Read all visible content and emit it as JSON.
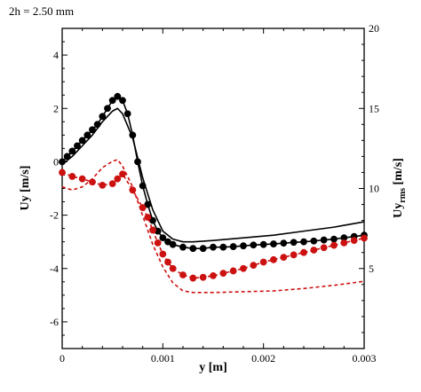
{
  "chart_data": {
    "type": "line",
    "annotation": "2h = 2.50 mm",
    "xlabel": "y [m]",
    "ylabel_left": "Uy [m/s]",
    "ylabel_right_base": "Uy",
    "ylabel_right_sub": "rms",
    "ylabel_right_unit": "[m/s]",
    "xlim": [
      0,
      0.003
    ],
    "ylim_left": [
      -7,
      5
    ],
    "ylim_right": [
      0,
      20
    ],
    "xticks": [
      0,
      0.001,
      0.002,
      0.003
    ],
    "xtick_labels": [
      "0",
      "0.001",
      "0.002",
      "0.003"
    ],
    "yticks_left": [
      -6,
      -4,
      -2,
      0,
      2,
      4
    ],
    "yticks_left_labels": [
      "-6",
      "-4",
      "-2",
      "0",
      "2",
      "4"
    ],
    "yticks_right": [
      5,
      10,
      15,
      20
    ],
    "yticks_right_labels": [
      "5",
      "10",
      "15",
      "20"
    ],
    "grid": false,
    "legend": "none",
    "colors": {
      "black": "#000000",
      "red": "#cc1111"
    },
    "series": [
      {
        "axis": "left",
        "style": "solid",
        "markers": false,
        "color": "#000000",
        "x": [
          0,
          0.0001,
          0.0002,
          0.0003,
          0.0004,
          0.0005,
          0.00055,
          0.0006,
          0.0007,
          0.0008,
          0.0009,
          0.001,
          0.0011,
          0.0012,
          0.0013,
          0.0015,
          0.0018,
          0.0021,
          0.0024,
          0.0027,
          0.003
        ],
        "y": [
          -0.1,
          0.2,
          0.6,
          1.0,
          1.5,
          1.9,
          2.0,
          1.8,
          0.9,
          -0.6,
          -1.8,
          -2.6,
          -2.9,
          -3.0,
          -3.0,
          -2.95,
          -2.85,
          -2.75,
          -2.6,
          -2.45,
          -2.25
        ]
      },
      {
        "axis": "left",
        "style": "solid",
        "markers": true,
        "color": "#000000",
        "x": [
          0,
          5e-05,
          0.0001,
          0.00015,
          0.0002,
          0.00025,
          0.0003,
          0.00035,
          0.0004,
          0.00045,
          0.0005,
          0.00055,
          0.0006,
          0.00065,
          0.0007,
          0.00075,
          0.0008,
          0.00085,
          0.0009,
          0.00095,
          0.001,
          0.00105,
          0.0011,
          0.0012,
          0.0013,
          0.0014,
          0.0015,
          0.0016,
          0.0017,
          0.0018,
          0.0019,
          0.002,
          0.0021,
          0.0022,
          0.0023,
          0.0024,
          0.0025,
          0.0026,
          0.0027,
          0.0028,
          0.0029,
          0.003
        ],
        "y": [
          0.0,
          0.2,
          0.4,
          0.6,
          0.8,
          1.0,
          1.2,
          1.4,
          1.7,
          2.0,
          2.3,
          2.45,
          2.3,
          1.8,
          1.0,
          0.0,
          -0.9,
          -1.6,
          -2.2,
          -2.6,
          -2.85,
          -3.0,
          -3.1,
          -3.2,
          -3.25,
          -3.25,
          -3.2,
          -3.2,
          -3.18,
          -3.15,
          -3.12,
          -3.1,
          -3.08,
          -3.05,
          -3.02,
          -3.0,
          -2.97,
          -2.93,
          -2.9,
          -2.85,
          -2.8,
          -2.75
        ]
      },
      {
        "axis": "right",
        "style": "dashed",
        "markers": false,
        "color": "#cc1111",
        "x": [
          0,
          0.0001,
          0.0002,
          0.0003,
          0.0004,
          0.0005,
          0.00055,
          0.0006,
          0.0007,
          0.0008,
          0.0009,
          0.001,
          0.0011,
          0.0012,
          0.0013,
          0.0015,
          0.0018,
          0.0021,
          0.0024,
          0.0027,
          0.003
        ],
        "y": [
          10.1,
          9.9,
          10.1,
          10.6,
          11.3,
          11.7,
          11.8,
          11.4,
          10.1,
          8.3,
          6.5,
          5.1,
          4.1,
          3.6,
          3.5,
          3.5,
          3.55,
          3.6,
          3.75,
          3.95,
          4.2
        ]
      },
      {
        "axis": "right",
        "style": "dashed",
        "markers": true,
        "color": "#cc1111",
        "x": [
          0,
          0.0001,
          0.0002,
          0.0003,
          0.0004,
          0.0005,
          0.00055,
          0.0006,
          0.0007,
          0.0008,
          0.00085,
          0.0009,
          0.00095,
          0.001,
          0.00105,
          0.0011,
          0.0012,
          0.0013,
          0.0014,
          0.0015,
          0.0016,
          0.0017,
          0.0018,
          0.0019,
          0.002,
          0.0021,
          0.0022,
          0.0023,
          0.0024,
          0.0025,
          0.0026,
          0.0027,
          0.0028,
          0.0029,
          0.003
        ],
        "y": [
          11.0,
          10.75,
          10.6,
          10.4,
          10.2,
          10.3,
          10.6,
          10.9,
          9.9,
          8.8,
          8.2,
          7.4,
          6.6,
          5.9,
          5.4,
          5.0,
          4.6,
          4.4,
          4.45,
          4.55,
          4.7,
          4.85,
          5.0,
          5.2,
          5.4,
          5.55,
          5.7,
          5.85,
          6.0,
          6.15,
          6.3,
          6.45,
          6.6,
          6.75,
          6.9
        ]
      }
    ]
  }
}
